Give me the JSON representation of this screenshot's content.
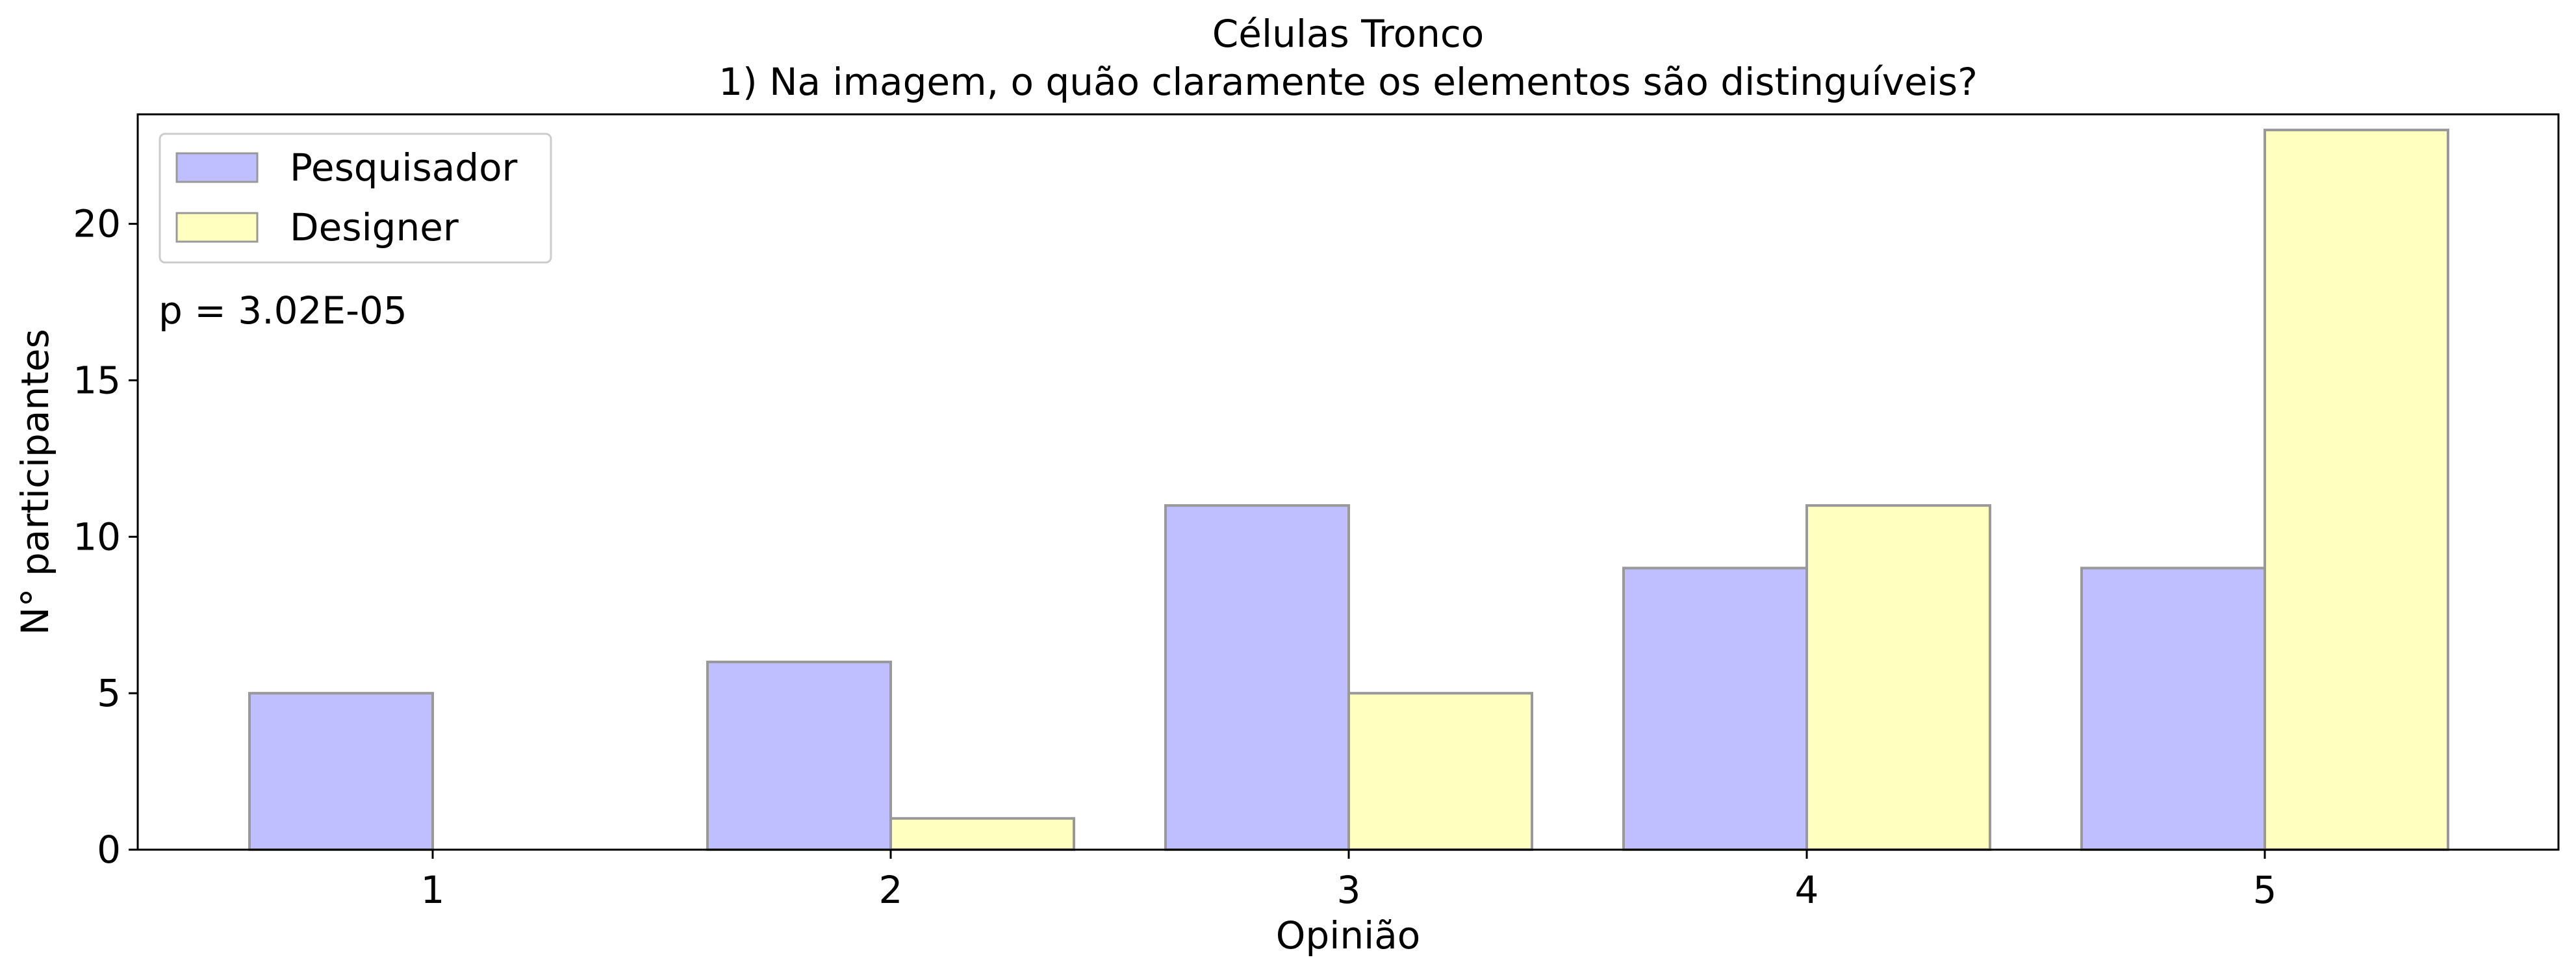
{
  "chart_data": {
    "type": "bar",
    "title": "Células Tronco",
    "subtitle": "1) Na imagem, o quão claramente os elementos são distinguíveis?",
    "xlabel": "Opinião",
    "ylabel": "N° participantes",
    "categories": [
      "1",
      "2",
      "3",
      "4",
      "5"
    ],
    "series": [
      {
        "name": "Pesquisador",
        "values": [
          5,
          6,
          11,
          9,
          9
        ],
        "color": "#bfbfff"
      },
      {
        "name": "Designer",
        "values": [
          0,
          1,
          5,
          11,
          23
        ],
        "color": "#ffffbf"
      }
    ],
    "ylim": [
      0,
      23.5
    ],
    "yticks": [
      0,
      5,
      10,
      15,
      20
    ],
    "grid": false,
    "legend_position": "top-left",
    "annotation": "p = 3.02E-05"
  }
}
